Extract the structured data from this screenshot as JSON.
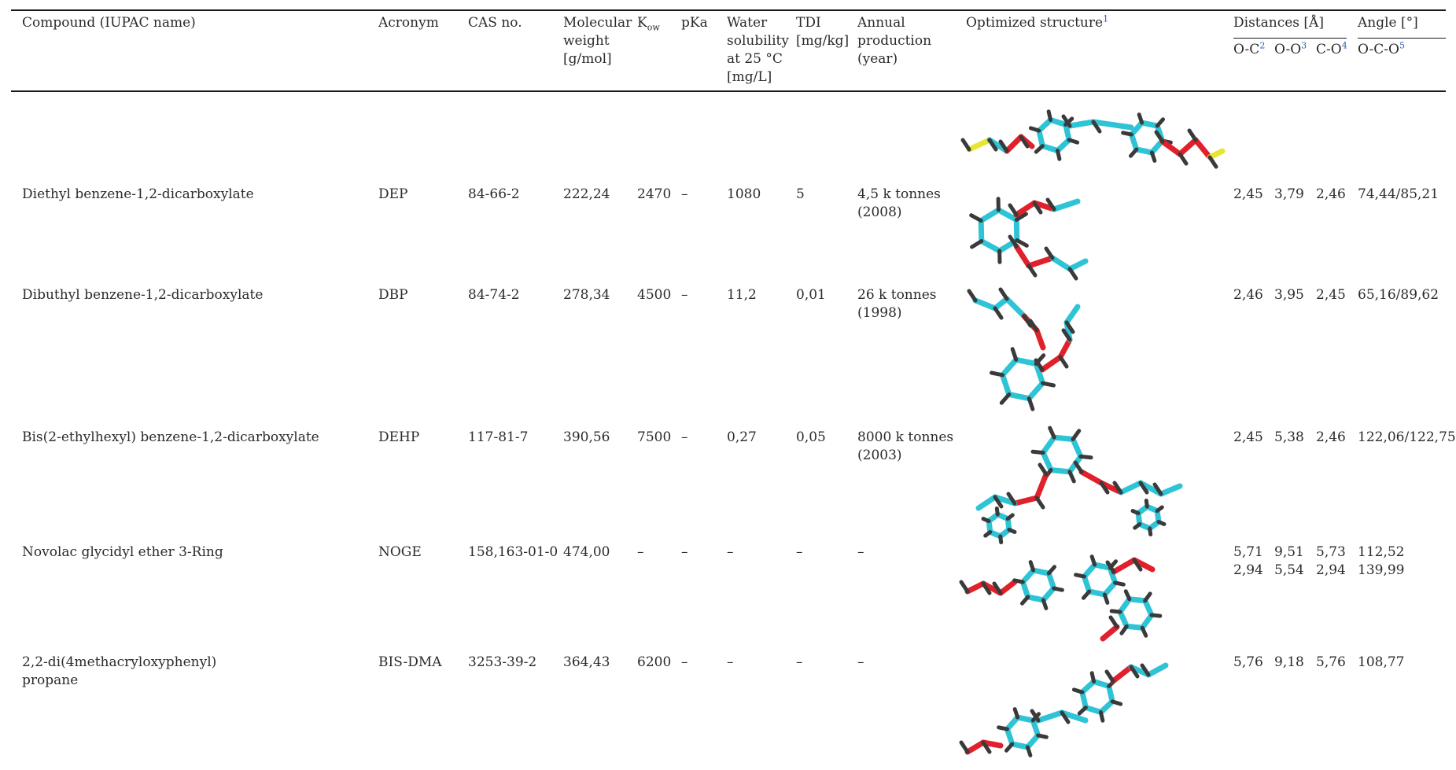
{
  "header": {
    "compound": "Compound (IUPAC name)",
    "acronym": "Acronym",
    "cas": "CAS no.",
    "mw": "Molecular weight [g/mol]",
    "kow_base": "K",
    "kow_sub": "ow",
    "pka": "pKa",
    "solubility": "Water solubility at 25 °C [mg/L]",
    "tdi": "TDI [mg/kg]",
    "production": "Annual production (year)",
    "structure": "Optimized structure",
    "structure_note": "1",
    "distances": "Distances [Å]",
    "angle": "Angle [°]",
    "oc": "O-C",
    "oc_note": "2",
    "oo": "O-O",
    "oo_note": "3",
    "co": "C-O",
    "co_note": "4",
    "oco": "O-C-O",
    "oco_note": "5"
  },
  "rows": [
    {
      "compound": "Diethyl benzene-1,2-dicarboxylate",
      "acronym": "DEP",
      "cas": "84-66-2",
      "mw": "222,24",
      "kow": "2470",
      "pka": "–",
      "solubility": "1080",
      "tdi": "5",
      "production": "4,5 k tonnes",
      "production_year": "(2008)",
      "oc": "2,45",
      "oo": "3,79",
      "co": "2,46",
      "angle": "74,44/85,21"
    },
    {
      "compound": "Dibuthyl benzene-1,2-dicarboxylate",
      "acronym": "DBP",
      "cas": "84-74-2",
      "mw": "278,34",
      "kow": "4500",
      "pka": "–",
      "solubility": "11,2",
      "tdi": "0,01",
      "production": "26 k tonnes",
      "production_year": "(1998)",
      "oc": "2,46",
      "oo": "3,95",
      "co": "2,45",
      "angle": "65,16/89,62"
    },
    {
      "compound": "Bis(2-ethylhexyl) benzene-1,2-dicarboxylate",
      "acronym": "DEHP",
      "cas": "117-81-7",
      "mw": "390,56",
      "kow": "7500",
      "pka": "–",
      "solubility": "0,27",
      "tdi": "0,05",
      "production": "8000 k tonnes",
      "production_year": "(2003)",
      "oc": "2,45",
      "oo": "5,38",
      "co": "2,46",
      "angle": "122,06/122,75"
    },
    {
      "compound": "Novolac glycidyl ether 3-Ring",
      "acronym": "NOGE",
      "cas": "158,163-01-0",
      "mw": "474,00",
      "kow": "–",
      "pka": "–",
      "solubility": "–",
      "tdi": "–",
      "production": "–",
      "production_year": "",
      "oc": "5,71",
      "oo": "9,51",
      "co": "5,73",
      "angle": "112,52",
      "oc2": "2,94",
      "oo2": "5,54",
      "co2": "2,94",
      "angle2": "139,99"
    },
    {
      "compound": "2,2-di(4methacryloxyphenyl)",
      "compound_line2": "propane",
      "acronym": "BIS-DMA",
      "cas": "3253-39-2",
      "mw": "364,43",
      "kow": "6200",
      "pka": "–",
      "solubility": "–",
      "tdi": "–",
      "production": "–",
      "production_year": "",
      "oc": "5,76",
      "oo": "9,18",
      "co": "5,76",
      "angle": "108,77"
    }
  ],
  "colors": {
    "carbon": "#2ec4d6",
    "hydrogen": "#3a3a3a",
    "oxygen": "#e0202a",
    "chlorine": "#e6e630"
  }
}
